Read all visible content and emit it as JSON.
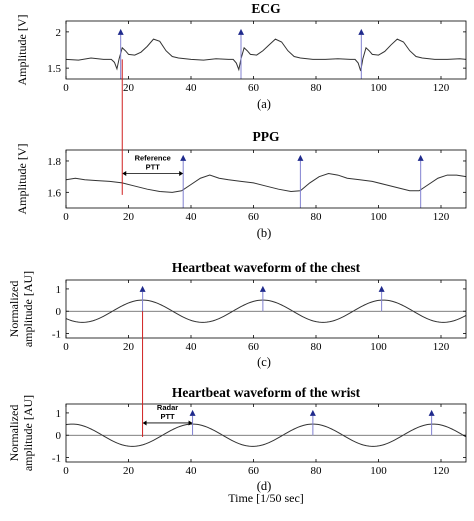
{
  "chart_data": [
    {
      "type": "line",
      "title": "ECG",
      "ylabel": "Amplitude [V]",
      "xlabel": "",
      "panel_label": "(a)",
      "xlim": [
        0,
        128
      ],
      "ylim": [
        1.35,
        2.15
      ],
      "xticks": [
        0,
        20,
        40,
        60,
        80,
        100,
        120
      ],
      "yticks": [
        1.5,
        2
      ],
      "ytick_labels": [
        "1.5",
        "2"
      ],
      "grid": false,
      "zero_line": false,
      "series": [
        {
          "points": [
            [
              0,
              1.62
            ],
            [
              4,
              1.61
            ],
            [
              8,
              1.64
            ],
            [
              12,
              1.62
            ],
            [
              14.5,
              1.62
            ],
            [
              15.5,
              1.58
            ],
            [
              16.3,
              1.49
            ],
            [
              17,
              1.63
            ],
            [
              18,
              1.78
            ],
            [
              19,
              1.74
            ],
            [
              20,
              1.69
            ],
            [
              22,
              1.68
            ],
            [
              24,
              1.72
            ],
            [
              26,
              1.8
            ],
            [
              28,
              1.9
            ],
            [
              30,
              1.87
            ],
            [
              32,
              1.74
            ],
            [
              34,
              1.66
            ],
            [
              36,
              1.64
            ],
            [
              40,
              1.62
            ],
            [
              44,
              1.61
            ],
            [
              48,
              1.63
            ],
            [
              52,
              1.62
            ],
            [
              53.5,
              1.62
            ],
            [
              54.5,
              1.57
            ],
            [
              55.3,
              1.48
            ],
            [
              56,
              1.63
            ],
            [
              57,
              1.78
            ],
            [
              58,
              1.74
            ],
            [
              59,
              1.69
            ],
            [
              61,
              1.68
            ],
            [
              63,
              1.74
            ],
            [
              65,
              1.82
            ],
            [
              67,
              1.9
            ],
            [
              69,
              1.86
            ],
            [
              71,
              1.74
            ],
            [
              73,
              1.66
            ],
            [
              75,
              1.64
            ],
            [
              79,
              1.62
            ],
            [
              83,
              1.62
            ],
            [
              87,
              1.63
            ],
            [
              91,
              1.62
            ],
            [
              92.5,
              1.62
            ],
            [
              93.5,
              1.57
            ],
            [
              94.3,
              1.46
            ],
            [
              95,
              1.63
            ],
            [
              96,
              1.78
            ],
            [
              97,
              1.74
            ],
            [
              98,
              1.69
            ],
            [
              100,
              1.68
            ],
            [
              102,
              1.73
            ],
            [
              104,
              1.82
            ],
            [
              106,
              1.9
            ],
            [
              108,
              1.86
            ],
            [
              110,
              1.74
            ],
            [
              112,
              1.66
            ],
            [
              114,
              1.64
            ],
            [
              118,
              1.62
            ],
            [
              122,
              1.62
            ],
            [
              126,
              1.63
            ],
            [
              128,
              1.62
            ]
          ]
        }
      ],
      "markers": [
        {
          "x": 17.5,
          "y_line_from": 1.35,
          "y": 2.0
        },
        {
          "x": 56,
          "y_line_from": 1.35,
          "y": 2.0
        },
        {
          "x": 94.5,
          "y_line_from": 1.35,
          "y": 2.0
        }
      ]
    },
    {
      "type": "line",
      "title": "PPG",
      "ylabel": "Amplitude [V]",
      "xlabel": "",
      "panel_label": "(b)",
      "xlim": [
        0,
        128
      ],
      "ylim": [
        1.5,
        1.87
      ],
      "xticks": [
        0,
        20,
        40,
        60,
        80,
        100,
        120
      ],
      "yticks": [
        1.6,
        1.8
      ],
      "ytick_labels": [
        "1.6",
        "1.8"
      ],
      "grid": false,
      "zero_line": false,
      "series": [
        {
          "points": [
            [
              0,
              1.68
            ],
            [
              3,
              1.69
            ],
            [
              6,
              1.68
            ],
            [
              10,
              1.675
            ],
            [
              14,
              1.67
            ],
            [
              18,
              1.66
            ],
            [
              22,
              1.64
            ],
            [
              26,
              1.62
            ],
            [
              30,
              1.605
            ],
            [
              34,
              1.6
            ],
            [
              37,
              1.61
            ],
            [
              40,
              1.65
            ],
            [
              43,
              1.69
            ],
            [
              46,
              1.71
            ],
            [
              49,
              1.69
            ],
            [
              52,
              1.68
            ],
            [
              56,
              1.67
            ],
            [
              60,
              1.66
            ],
            [
              64,
              1.64
            ],
            [
              68,
              1.62
            ],
            [
              72,
              1.605
            ],
            [
              75,
              1.61
            ],
            [
              78,
              1.66
            ],
            [
              81,
              1.7
            ],
            [
              84,
              1.72
            ],
            [
              87,
              1.71
            ],
            [
              90,
              1.69
            ],
            [
              94,
              1.68
            ],
            [
              98,
              1.67
            ],
            [
              102,
              1.65
            ],
            [
              106,
              1.63
            ],
            [
              110,
              1.61
            ],
            [
              113,
              1.61
            ],
            [
              116,
              1.65
            ],
            [
              119,
              1.69
            ],
            [
              122,
              1.71
            ],
            [
              125,
              1.71
            ],
            [
              128,
              1.7
            ]
          ]
        }
      ],
      "markers": [
        {
          "x": 37.5,
          "y_line_from": 1.5,
          "y": 1.82
        },
        {
          "x": 75,
          "y_line_from": 1.5,
          "y": 1.82
        },
        {
          "x": 113.5,
          "y_line_from": 1.5,
          "y": 1.82
        }
      ],
      "annotation": {
        "text_line1": "Reference",
        "text_line2": "PTT",
        "x_from": 18,
        "x_to": 37.5,
        "y": 1.72
      }
    },
    {
      "type": "line",
      "title": "Heartbeat waveform of the chest",
      "ylabel": "Normalized",
      "ylabel2": "amplitude [AU]",
      "xlabel": "",
      "panel_label": "(c)",
      "xlim": [
        0,
        128
      ],
      "ylim": [
        -1.2,
        1.4
      ],
      "xticks": [
        0,
        20,
        40,
        60,
        80,
        100,
        120
      ],
      "yticks": [
        -1,
        0,
        1
      ],
      "ytick_labels": [
        "-1",
        "0",
        "1"
      ],
      "grid": false,
      "zero_line": true,
      "series": [
        {
          "wave": {
            "amplitude": 0.5,
            "period": 38.5,
            "peak_x": 24.5,
            "x_start": 0,
            "x_end": 128
          }
        }
      ],
      "markers": [
        {
          "x": 24.5,
          "y_line_from": 0,
          "y": 1.0
        },
        {
          "x": 63,
          "y_line_from": 0,
          "y": 1.0
        },
        {
          "x": 101,
          "y_line_from": 0,
          "y": 1.0
        }
      ]
    },
    {
      "type": "line",
      "title": "Heartbeat waveform of the wrist",
      "ylabel": "Normalized",
      "ylabel2": "amplitude [AU]",
      "xlabel": "Time [1/50 sec]",
      "panel_label": "(d)",
      "xlim": [
        0,
        128
      ],
      "ylim": [
        -1.2,
        1.4
      ],
      "xticks": [
        0,
        20,
        40,
        60,
        80,
        100,
        120
      ],
      "yticks": [
        -1,
        0,
        1
      ],
      "ytick_labels": [
        "-1",
        "0",
        "1"
      ],
      "grid": false,
      "zero_line": true,
      "series": [
        {
          "wave": {
            "amplitude": 0.5,
            "period": 38.5,
            "peak_x": 40.5,
            "x_start": 0,
            "x_end": 128
          }
        }
      ],
      "markers": [
        {
          "x": 40.5,
          "y_line_from": 0,
          "y": 1.0
        },
        {
          "x": 79,
          "y_line_from": 0,
          "y": 1.0
        },
        {
          "x": 117,
          "y_line_from": 0,
          "y": 1.0
        }
      ],
      "annotation": {
        "text_line1": "Radar",
        "text_line2": "PTT",
        "x_from": 24.5,
        "x_to": 40.5,
        "y": 0.55
      }
    }
  ],
  "colors": {
    "signal": "#333333",
    "marker": "#1f2a8c",
    "marker_line": "#8080d0",
    "connector": "#d02020",
    "zero_line": "#555555"
  },
  "connectors": [
    {
      "from_panel": 0,
      "to_panel": 1,
      "x": 18,
      "y_top_panel0": 1.62,
      "y_bottom_panel1": 1.66
    },
    {
      "from_panel": 2,
      "to_panel": 3,
      "x": 24.5,
      "y_top_panel2": 0,
      "y_bottom_panel3": 0.55
    }
  ]
}
